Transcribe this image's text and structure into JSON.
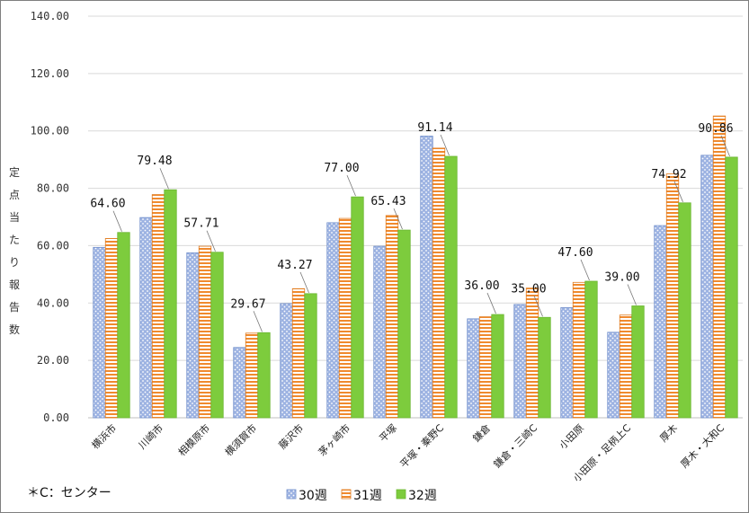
{
  "chart_data": {
    "type": "bar",
    "ylabel": "定点当たり報告数",
    "ylim": [
      0,
      140
    ],
    "yticks": [
      "0.00",
      "20.00",
      "40.00",
      "60.00",
      "80.00",
      "100.00",
      "120.00",
      "140.00"
    ],
    "grid": true,
    "legend_position": "bottom",
    "categories": [
      "横浜市",
      "川崎市",
      "相模原市",
      "横須賀市",
      "藤沢市",
      "茅ヶ崎市",
      "平塚",
      "平塚・秦野C",
      "鎌倉",
      "鎌倉・三崎C",
      "小田原",
      "小田原・足柄上C",
      "厚木",
      "厚木・大和C"
    ],
    "series": [
      {
        "name": "30週",
        "color": "#8fa9dc",
        "pattern": "dots",
        "values": [
          59.4,
          69.8,
          57.5,
          24.5,
          39.8,
          68.0,
          59.8,
          98.2,
          34.5,
          39.5,
          38.4,
          29.8,
          67.0,
          91.5
        ]
      },
      {
        "name": "31週",
        "color": "#f4a15a",
        "pattern": "stripes",
        "values": [
          62.5,
          77.8,
          59.8,
          29.5,
          45.0,
          69.5,
          70.5,
          94.0,
          35.2,
          45.2,
          47.2,
          35.8,
          85.0,
          105.2
        ]
      },
      {
        "name": "32週",
        "color": "#7dcc3d",
        "pattern": "solid",
        "values": [
          64.6,
          79.48,
          57.71,
          29.67,
          43.27,
          77.0,
          65.43,
          91.14,
          36.0,
          35.0,
          47.6,
          39.0,
          74.92,
          90.86
        ]
      }
    ],
    "data_labels": [
      "64.60",
      "79.48",
      "57.71",
      "29.67",
      "43.27",
      "77.00",
      "65.43",
      "91.14",
      "36.00",
      "35.00",
      "47.60",
      "39.00",
      "74.92",
      "90.86"
    ]
  },
  "note": "＊C：センター"
}
